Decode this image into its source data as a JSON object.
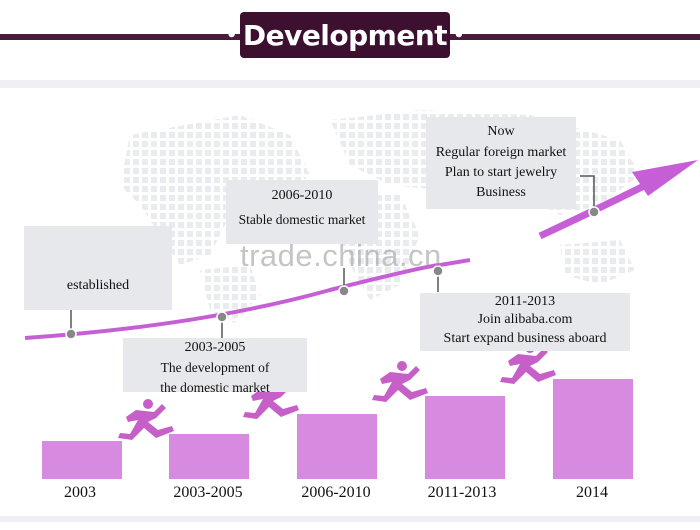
{
  "header": {
    "title": "Development",
    "bullet": "•"
  },
  "watermark": "trade.china.cn",
  "boxes": {
    "established": {
      "line1": "established"
    },
    "p2003_2005": {
      "line1": "2003-2005",
      "line2": "The development of",
      "line3": "the domestic market"
    },
    "p2006_2010": {
      "line1": "2006-2010",
      "line2": "Stable domestic market"
    },
    "p2011_2013": {
      "line1": "2011-2013",
      "line2": "Join alibaba.com",
      "line3": "Start expand business aboard"
    },
    "now": {
      "line1": "Now",
      "line2": "Regular foreign market",
      "line3": "Plan to start jewelry",
      "line4": "Business"
    }
  },
  "years": [
    "2003",
    "2003-2005",
    "2006-2010",
    "2011-2013",
    "2014"
  ],
  "colors": {
    "header_bg": "#3d1030",
    "accent": "#c65fd6",
    "bar": "#d68ae0",
    "box_bg": "#e6e8ec"
  },
  "icons": [
    "runner-icon",
    "world-map-icon",
    "arrow-icon"
  ]
}
